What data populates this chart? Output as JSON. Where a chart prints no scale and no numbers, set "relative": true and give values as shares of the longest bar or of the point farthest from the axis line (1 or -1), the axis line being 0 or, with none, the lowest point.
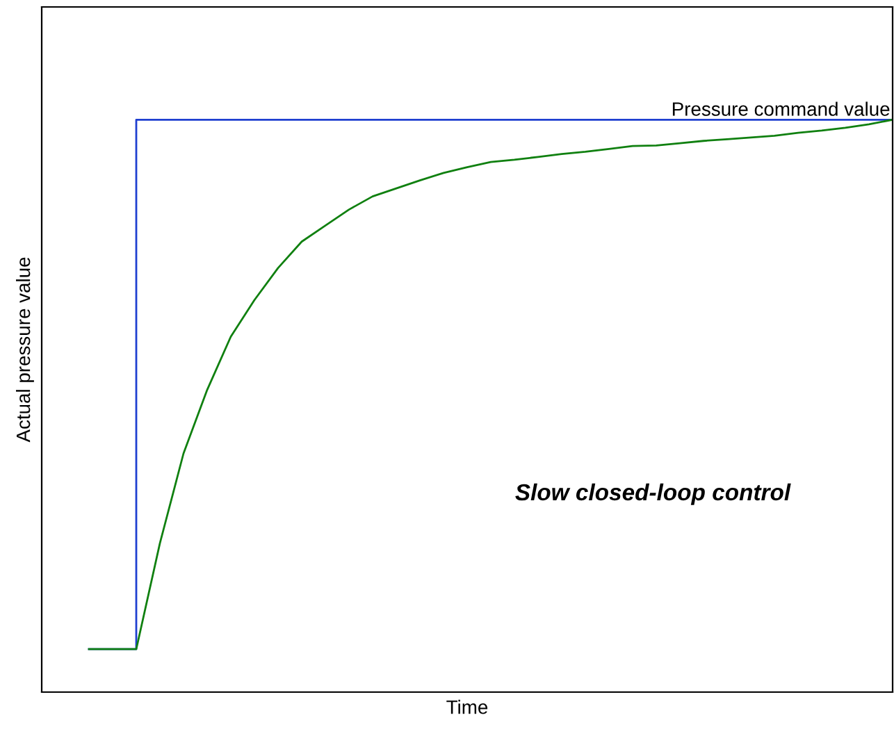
{
  "chart_data": {
    "type": "line",
    "relative": true,
    "xlabel": "Time",
    "ylabel": "Actual pressure value",
    "categories": [
      null,
      null,
      null,
      null,
      null,
      null,
      null,
      null,
      null,
      null,
      null,
      null,
      null,
      null,
      null,
      null,
      null,
      null,
      null,
      null,
      null,
      null,
      null,
      null,
      null,
      null,
      null,
      null,
      null,
      null,
      null,
      null,
      null,
      null,
      null
    ],
    "series": [
      {
        "name": "Pressure command value",
        "type": "step",
        "color": "#1f3fd0",
        "values": [
          0.075,
          0.075,
          1,
          1,
          1,
          1,
          1,
          1,
          1,
          1,
          1,
          1,
          1,
          1,
          1,
          1,
          1,
          1,
          1,
          1,
          1,
          1,
          1,
          1,
          1,
          1,
          1,
          1,
          1,
          1,
          1,
          1,
          1,
          1,
          1
        ]
      },
      {
        "color": "#108010",
        "values": [
          0.075,
          0.075,
          0.075,
          0.26,
          0.417,
          0.528,
          0.621,
          0.685,
          0.741,
          0.787,
          0.815,
          0.843,
          0.866,
          0.88,
          0.894,
          0.907,
          0.917,
          0.926,
          0.93,
          0.935,
          0.94,
          0.944,
          0.949,
          0.954,
          0.955,
          0.959,
          0.963,
          0.966,
          0.969,
          0.972,
          0.977,
          0.981,
          0.986,
          0.992,
          1
        ]
      }
    ],
    "annotations": [
      "Slow closed-loop control"
    ],
    "legend": false
  }
}
